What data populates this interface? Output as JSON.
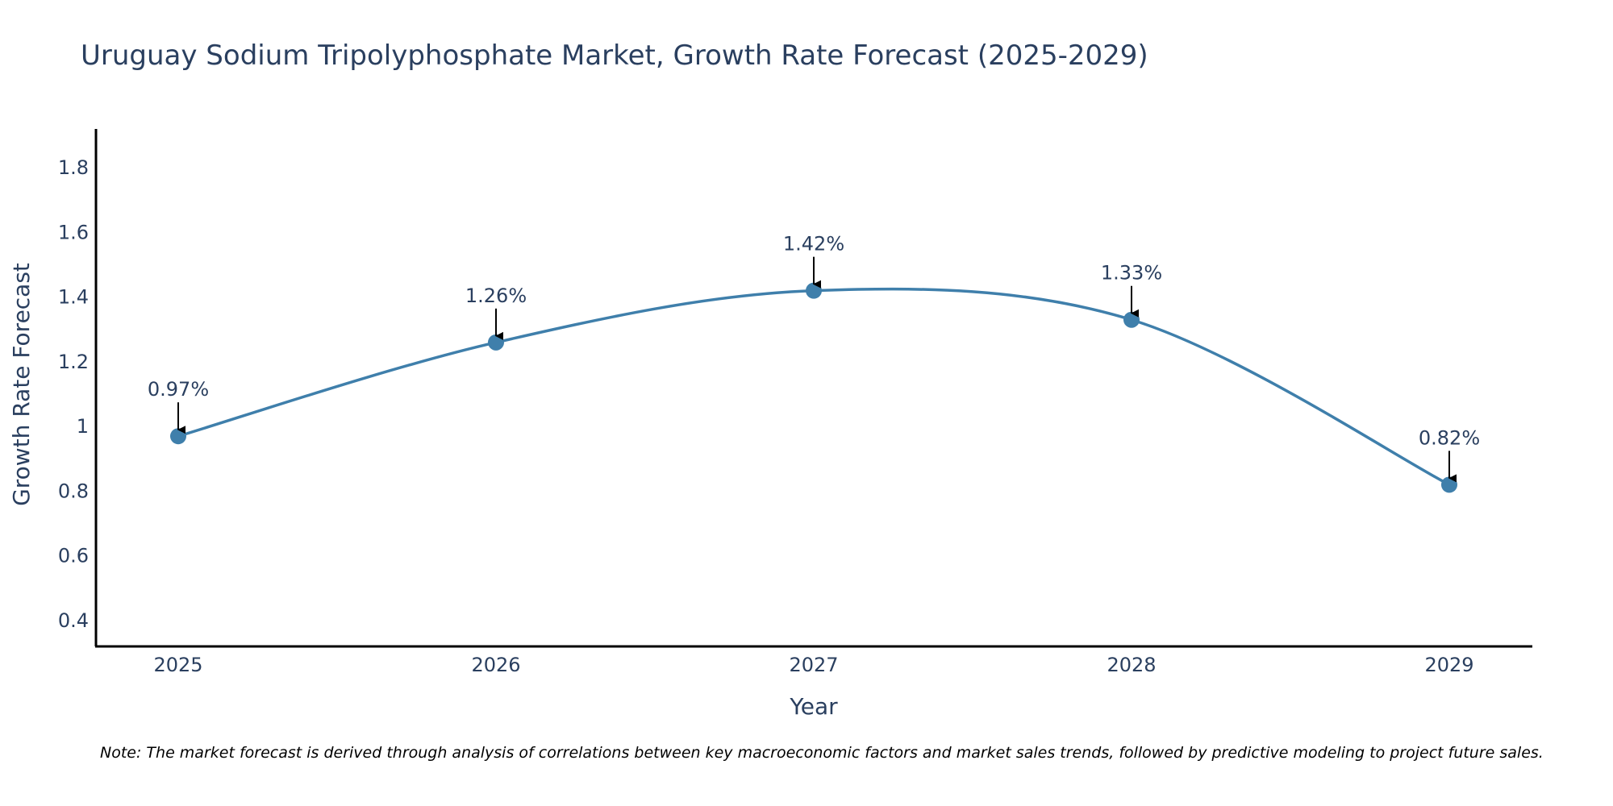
{
  "chart_data": {
    "type": "line",
    "title": "Uruguay Sodium Tripolyphosphate Market, Growth Rate Forecast (2025-2029)",
    "xlabel": "Year",
    "ylabel": "Growth Rate Forecast",
    "categories": [
      "2025",
      "2026",
      "2027",
      "2028",
      "2029"
    ],
    "values": [
      0.97,
      1.26,
      1.42,
      1.33,
      0.82
    ],
    "labels": [
      "0.97%",
      "1.26%",
      "1.42%",
      "1.33%",
      "0.82%"
    ],
    "ylim": [
      0.32,
      1.92
    ],
    "yticks": [
      0.4,
      0.6,
      0.8,
      1,
      1.2,
      1.4,
      1.6,
      1.8
    ],
    "ytick_labels": [
      "0.4",
      "0.6",
      "0.8",
      "1",
      "1.2",
      "1.4",
      "1.6",
      "1.8"
    ],
    "grid": false,
    "line_color": "#3f7fab",
    "marker_color": "#3f7fab",
    "note": "Note: The market forecast is derived through analysis of correlations between key macroeconomic factors and market sales trends, followed by predictive modeling to project future sales."
  }
}
